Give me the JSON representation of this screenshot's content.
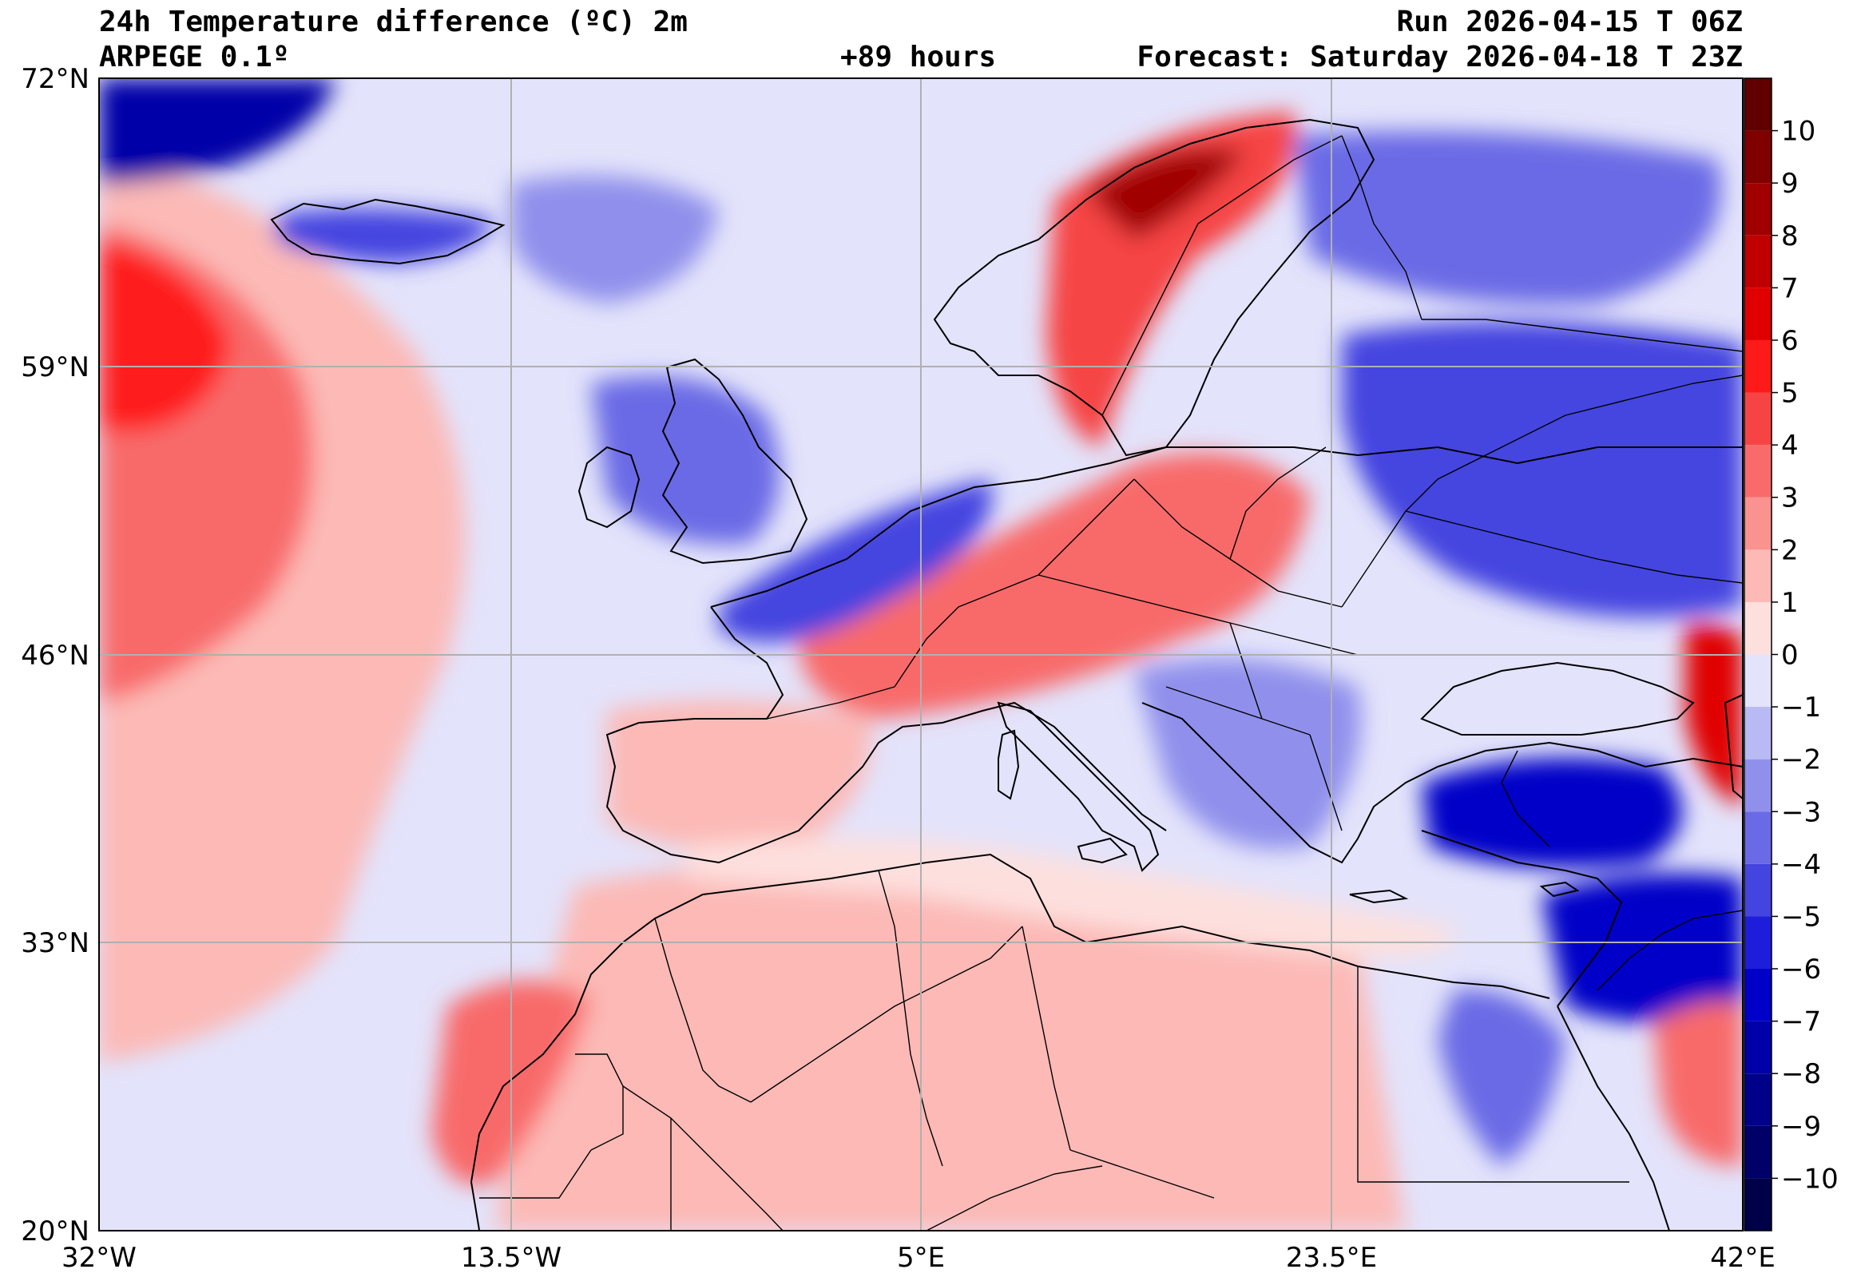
{
  "header": {
    "title": "24h Temperature difference (ºC) 2m",
    "model": "ARPEGE 0.1º",
    "lead": "+89 hours",
    "run": "Run 2026-04-15 T 06Z",
    "forecast": "Forecast: Saturday 2026-04-18 T 23Z"
  },
  "axes": {
    "lat_labels": [
      "72°N",
      "59°N",
      "46°N",
      "33°N",
      "20°N"
    ],
    "lon_labels": [
      "32°W",
      "13.5°W",
      "5°E",
      "23.5°E",
      "42°E"
    ],
    "lat_range": [
      20,
      72
    ],
    "lon_range": [
      -32,
      42
    ],
    "grid": true
  },
  "colorbar": {
    "labels": [
      "10",
      "9",
      "8",
      "7",
      "6",
      "5",
      "4",
      "3",
      "2",
      "1",
      "0",
      "−1",
      "−2",
      "−3",
      "−4",
      "−5",
      "−6",
      "−7",
      "−8",
      "−9",
      "−10"
    ],
    "min": -11,
    "max": 11,
    "colors_warm": [
      "#fde0de",
      "#fcb9b6",
      "#fa9290",
      "#f86b6a",
      "#f64444",
      "#ff1a1a",
      "#e00000",
      "#c00000",
      "#a00000",
      "#800000",
      "#600000"
    ],
    "colors_cold": [
      "#e3e3fb",
      "#b9b9f4",
      "#9090ec",
      "#6a6ae6",
      "#4444e0",
      "#1e1eda",
      "#0000c8",
      "#0000a8",
      "#000088",
      "#000068",
      "#000048"
    ]
  }
}
